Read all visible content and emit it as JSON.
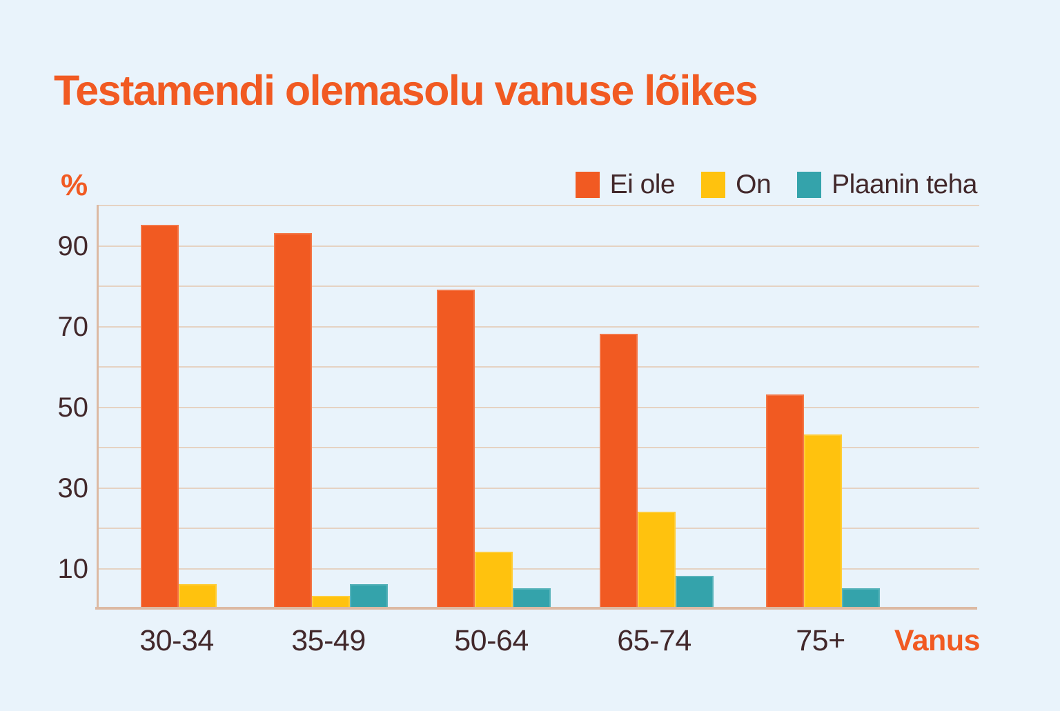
{
  "title": "Testamendi olemasolu vanuse lõikes",
  "y_axis_unit_label": "%",
  "x_axis_title": "Vanus",
  "colors": {
    "background": "#e9f3fb",
    "accent_orange": "#f15a22",
    "text_dark": "#42282b",
    "grid_line": "#e5d2c2",
    "axis_line": "#dcb9a3"
  },
  "chart_data": {
    "type": "bar",
    "title": "Testamendi olemasolu vanuse lõikes",
    "categories": [
      "30-34",
      "35-49",
      "50-64",
      "65-74",
      "75+"
    ],
    "series": [
      {
        "name": "Ei ole",
        "color": "#f15a22",
        "values": [
          95,
          93,
          79,
          68,
          53
        ]
      },
      {
        "name": "On",
        "color": "#ffc20e",
        "values": [
          6,
          3,
          14,
          24,
          43
        ]
      },
      {
        "name": "Plaanin teha",
        "color": "#34a3ab",
        "values": [
          0,
          6,
          5,
          8,
          5
        ]
      }
    ],
    "xlabel": "Vanus",
    "ylabel": "%",
    "ylim": [
      0,
      100
    ],
    "grid": true,
    "grid_step": 10,
    "ytick_labels": [
      10,
      30,
      50,
      70,
      90
    ],
    "legend_position": "top-right"
  }
}
